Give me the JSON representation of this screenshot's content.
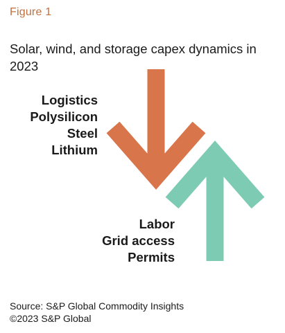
{
  "figure_label": "Figure 1",
  "title": "Solar, wind, and storage capex dynamics in 2023",
  "decreasing_arrow": {
    "color": "#d9754a",
    "factors": [
      "Logistics",
      "Polysilicon",
      "Steel",
      "Lithium"
    ]
  },
  "increasing_arrow": {
    "color": "#7dcbb3",
    "factors": [
      "Labor",
      "Grid access",
      "Permits"
    ]
  },
  "footer": {
    "source": "Source: S&P Global Commodity Insights",
    "copyright": "©2023 S&P Global"
  }
}
